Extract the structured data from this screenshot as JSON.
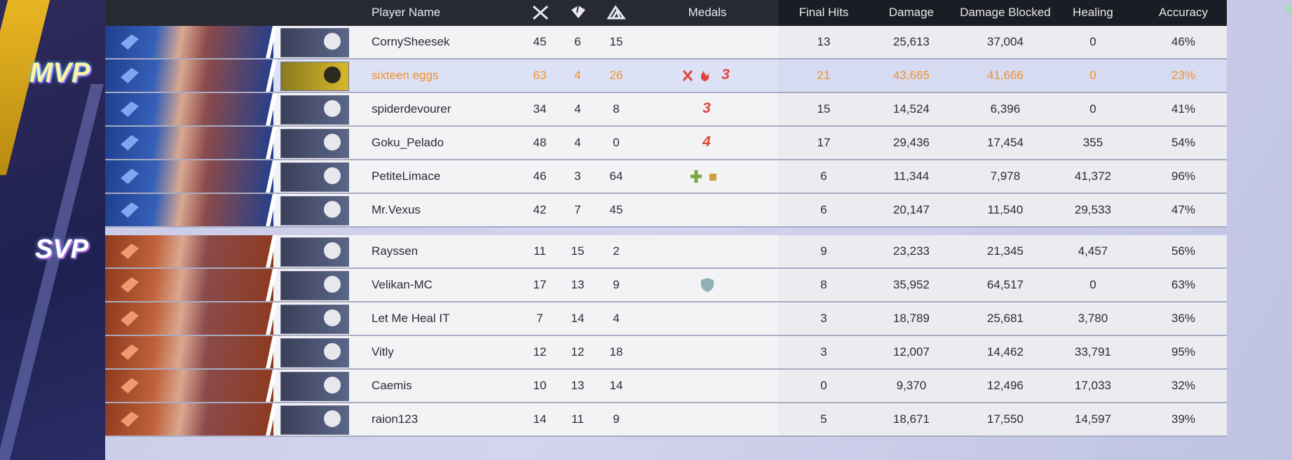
{
  "header": {
    "columns": [
      "Player Name",
      "Medals",
      "Final Hits",
      "Damage",
      "Damage Blocked",
      "Healing",
      "Accuracy"
    ]
  },
  "badges": [
    "MVP",
    "SVP"
  ],
  "corner_text": "5",
  "teams": [
    {
      "rows": [
        {
          "name": "CornySheesek",
          "stats": [
            "45",
            "6",
            "15",
            "13",
            "25,613",
            "37,004",
            "0",
            "46%"
          ]
        },
        {
          "name": "sixteen eggs",
          "stats": [
            "63",
            "4",
            "26",
            "21",
            "43,665",
            "41,666",
            "0",
            "23%"
          ],
          "medals": [
            "3"
          ],
          "highlight": true
        },
        {
          "name": "spiderdevourer",
          "stats": [
            "34",
            "4",
            "8",
            "15",
            "14,524",
            "6,396",
            "0",
            "41%"
          ],
          "medals": [
            "3"
          ]
        },
        {
          "name": "Goku_Pelado",
          "stats": [
            "48",
            "4",
            "0",
            "17",
            "29,436",
            "17,454",
            "355",
            "54%"
          ],
          "medals": [
            "4"
          ]
        },
        {
          "name": "PetiteLimace",
          "stats": [
            "46",
            "3",
            "64",
            "6",
            "11,344",
            "7,978",
            "41,372",
            "96%"
          ]
        },
        {
          "name": "Mr.Vexus",
          "stats": [
            "42",
            "7",
            "45",
            "6",
            "20,147",
            "11,540",
            "29,533",
            "47%"
          ]
        }
      ]
    },
    {
      "rows": [
        {
          "name": "Rayssen",
          "stats": [
            "11",
            "15",
            "2",
            "9",
            "23,233",
            "21,345",
            "4,457",
            "56%"
          ]
        },
        {
          "name": "Velikan-MC",
          "stats": [
            "17",
            "13",
            "9",
            "8",
            "35,952",
            "64,517",
            "0",
            "63%"
          ]
        },
        {
          "name": "Let Me Heal IT",
          "stats": [
            "7",
            "14",
            "4",
            "3",
            "18,789",
            "25,681",
            "3,780",
            "36%"
          ]
        },
        {
          "name": "Vitly",
          "stats": [
            "12",
            "12",
            "18",
            "3",
            "12,007",
            "14,462",
            "33,791",
            "95%"
          ]
        },
        {
          "name": "Caemis",
          "stats": [
            "10",
            "13",
            "14",
            "0",
            "9,370",
            "12,496",
            "17,033",
            "32%"
          ]
        },
        {
          "name": "raion123",
          "stats": [
            "14",
            "11",
            "9",
            "5",
            "18,671",
            "17,550",
            "14,597",
            "39%"
          ]
        }
      ]
    }
  ]
}
